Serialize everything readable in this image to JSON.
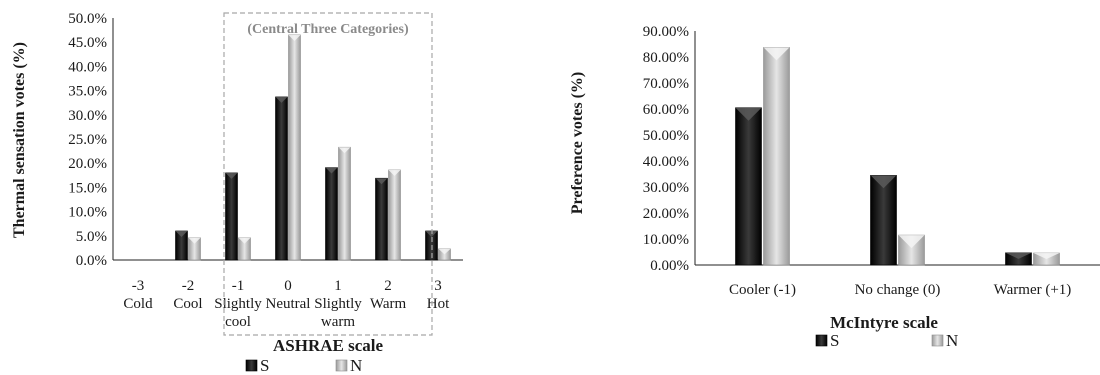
{
  "chart_data": [
    {
      "type": "bar",
      "ylabel": "Thermal sensation votes (%)",
      "xlabel": "ASHRAE scale",
      "ylim": [
        0,
        50
      ],
      "ytick_labels": [
        "0.0%",
        "5.0%",
        "10.0%",
        "15.0%",
        "20.0%",
        "25.0%",
        "30.0%",
        "35.0%",
        "40.0%",
        "45.0%",
        "50.0%"
      ],
      "categories": [
        {
          "code": "-3",
          "name": [
            "Cold"
          ]
        },
        {
          "code": "-2",
          "name": [
            "Cool"
          ]
        },
        {
          "code": "-1",
          "name": [
            "Slightly",
            "cool"
          ]
        },
        {
          "code": "0",
          "name": [
            "Neutral"
          ]
        },
        {
          "code": "1",
          "name": [
            "Slightly",
            "warm"
          ]
        },
        {
          "code": "2",
          "name": [
            "Warm"
          ]
        },
        {
          "code": "3",
          "name": [
            "Hot"
          ]
        }
      ],
      "series": [
        {
          "name": "S",
          "color": "#111111",
          "values": [
            0,
            6.0,
            18.0,
            33.7,
            19.1,
            16.9,
            6.0
          ]
        },
        {
          "name": "N",
          "color": "#b8b8b8",
          "values": [
            0,
            4.6,
            4.6,
            46.5,
            23.3,
            18.6,
            2.3
          ]
        }
      ],
      "annotation": "(Central Three Categories)",
      "grid": false,
      "legend_position": "bottom"
    },
    {
      "type": "bar",
      "ylabel": "Preference votes (%)",
      "xlabel": "McIntyre scale",
      "ylim": [
        0,
        90
      ],
      "ytick_labels": [
        "0.00%",
        "10.00%",
        "20.00%",
        "30.00%",
        "40.00%",
        "50.00%",
        "60.00%",
        "70.00%",
        "80.00%",
        "90.00%"
      ],
      "categories": [
        {
          "code": "",
          "name": [
            "Cooler (-1)"
          ]
        },
        {
          "code": "",
          "name": [
            "No change (0)"
          ]
        },
        {
          "code": "",
          "name": [
            "Warmer (+1)"
          ]
        }
      ],
      "series": [
        {
          "name": "S",
          "color": "#111111",
          "values": [
            60.5,
            34.5,
            4.7
          ]
        },
        {
          "name": "N",
          "color": "#b8b8b8",
          "values": [
            83.7,
            11.5,
            4.6
          ]
        }
      ],
      "grid": false,
      "legend_position": "bottom"
    }
  ]
}
